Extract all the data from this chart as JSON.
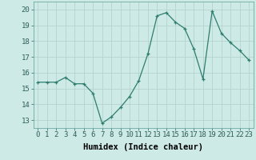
{
  "x": [
    0,
    1,
    2,
    3,
    4,
    5,
    6,
    7,
    8,
    9,
    10,
    11,
    12,
    13,
    14,
    15,
    16,
    17,
    18,
    19,
    20,
    21,
    22,
    23
  ],
  "y": [
    15.4,
    15.4,
    15.4,
    15.7,
    15.3,
    15.3,
    14.7,
    12.8,
    13.2,
    13.8,
    14.5,
    15.5,
    17.2,
    19.6,
    19.8,
    19.2,
    18.8,
    17.5,
    15.6,
    19.9,
    18.5,
    17.9,
    17.4,
    16.8
  ],
  "line_color": "#2e7d6e",
  "marker": "+",
  "xlabel": "Humidex (Indice chaleur)",
  "xlim": [
    -0.5,
    23.5
  ],
  "ylim": [
    12.5,
    20.5
  ],
  "yticks": [
    13,
    14,
    15,
    16,
    17,
    18,
    19,
    20
  ],
  "xticks": [
    0,
    1,
    2,
    3,
    4,
    5,
    6,
    7,
    8,
    9,
    10,
    11,
    12,
    13,
    14,
    15,
    16,
    17,
    18,
    19,
    20,
    21,
    22,
    23
  ],
  "bg_color": "#cdeae6",
  "grid_color": "#b0d0cc",
  "tick_fontsize": 6.5,
  "xlabel_fontsize": 7.5
}
